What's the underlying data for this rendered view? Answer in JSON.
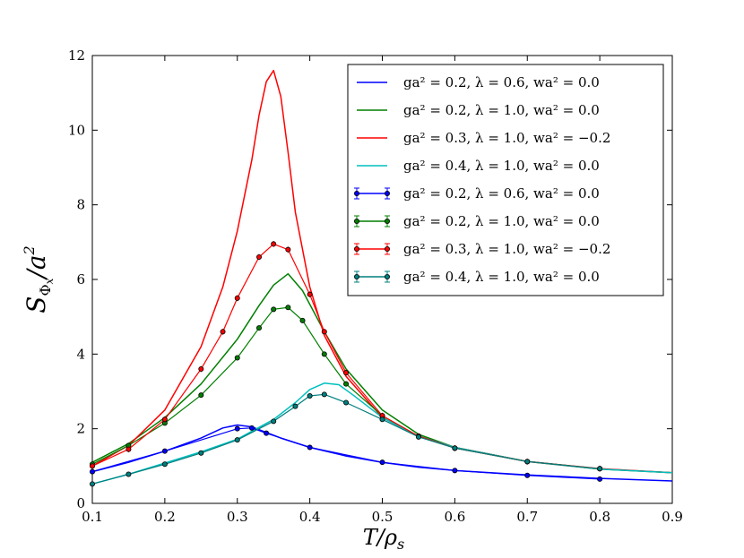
{
  "chart_data": {
    "type": "line",
    "xlabel": "T/ρ_s",
    "ylabel": "S_Φx/a^2",
    "xlim": [
      0.1,
      0.9
    ],
    "ylim": [
      0,
      12
    ],
    "xticks": [
      "0.1",
      "0.2",
      "0.3",
      "0.4",
      "0.5",
      "0.6",
      "0.7",
      "0.8",
      "0.9"
    ],
    "yticks": [
      "0",
      "2",
      "4",
      "6",
      "8",
      "10",
      "12"
    ],
    "legend_position": "top-right",
    "lines": [
      {
        "name": "ga² = 0.2, λ = 0.6, wa² = 0.0",
        "color": "#0000ff",
        "x": [
          0.1,
          0.15,
          0.2,
          0.25,
          0.28,
          0.3,
          0.32,
          0.34,
          0.36,
          0.4,
          0.45,
          0.5,
          0.55,
          0.6,
          0.7,
          0.8,
          0.9
        ],
        "y": [
          0.85,
          1.1,
          1.4,
          1.75,
          2.02,
          2.1,
          2.05,
          1.9,
          1.75,
          1.5,
          1.27,
          1.1,
          0.97,
          0.88,
          0.76,
          0.67,
          0.6
        ]
      },
      {
        "name": "ga² = 0.2, λ = 1.0, wa² = 0.0",
        "color": "#007f00",
        "x": [
          0.1,
          0.15,
          0.2,
          0.25,
          0.3,
          0.33,
          0.35,
          0.37,
          0.39,
          0.42,
          0.45,
          0.5,
          0.55,
          0.6,
          0.7,
          0.8,
          0.9
        ],
        "y": [
          1.1,
          1.6,
          2.3,
          3.2,
          4.4,
          5.3,
          5.85,
          6.15,
          5.7,
          4.6,
          3.6,
          2.5,
          1.85,
          1.5,
          1.12,
          0.92,
          0.82
        ]
      },
      {
        "name": "ga² = 0.3, λ = 1.0, wa² = −0.2",
        "color": "#ff0000",
        "x": [
          0.1,
          0.15,
          0.2,
          0.25,
          0.28,
          0.3,
          0.32,
          0.33,
          0.34,
          0.35,
          0.36,
          0.37,
          0.38,
          0.4,
          0.42,
          0.45,
          0.5,
          0.55,
          0.6,
          0.7,
          0.8,
          0.9
        ],
        "y": [
          1.0,
          1.55,
          2.5,
          4.2,
          5.8,
          7.3,
          9.2,
          10.4,
          11.3,
          11.6,
          10.9,
          9.4,
          7.8,
          5.8,
          4.5,
          3.4,
          2.3,
          1.8,
          1.5,
          1.12,
          0.93,
          0.82
        ]
      },
      {
        "name": "ga² = 0.4, λ = 1.0, wa² = 0.0",
        "color": "#00bfbf",
        "x": [
          0.1,
          0.15,
          0.2,
          0.25,
          0.3,
          0.35,
          0.38,
          0.4,
          0.42,
          0.44,
          0.46,
          0.5,
          0.55,
          0.6,
          0.7,
          0.8,
          0.9
        ],
        "y": [
          0.52,
          0.78,
          1.08,
          1.38,
          1.72,
          2.25,
          2.7,
          3.05,
          3.22,
          3.18,
          2.9,
          2.3,
          1.8,
          1.5,
          1.12,
          0.92,
          0.82
        ]
      }
    ],
    "errorbar_series": [
      {
        "name": "ga² = 0.2, λ = 0.6, wa² = 0.0",
        "color": "#0000ff",
        "err": 0.03,
        "x": [
          0.1,
          0.2,
          0.3,
          0.32,
          0.34,
          0.4,
          0.5,
          0.6,
          0.7,
          0.8
        ],
        "y": [
          0.85,
          1.4,
          2.0,
          2.02,
          1.88,
          1.5,
          1.1,
          0.88,
          0.75,
          0.65
        ]
      },
      {
        "name": "ga² = 0.2, λ = 1.0, wa² = 0.0",
        "color": "#007f00",
        "err": 0.05,
        "x": [
          0.1,
          0.15,
          0.2,
          0.25,
          0.3,
          0.33,
          0.35,
          0.37,
          0.39,
          0.42,
          0.45,
          0.5,
          0.55,
          0.6,
          0.7,
          0.8
        ],
        "y": [
          1.05,
          1.55,
          2.15,
          2.9,
          3.9,
          4.7,
          5.2,
          5.25,
          4.9,
          4.0,
          3.2,
          2.35,
          1.8,
          1.48,
          1.12,
          0.93
        ]
      },
      {
        "name": "ga² = 0.3, λ = 1.0, wa² = −0.2",
        "color": "#ff0000",
        "err": 0.08,
        "x": [
          0.1,
          0.15,
          0.2,
          0.25,
          0.28,
          0.3,
          0.33,
          0.35,
          0.37,
          0.4,
          0.42,
          0.45,
          0.5,
          0.55,
          0.6,
          0.7,
          0.8
        ],
        "y": [
          1.0,
          1.45,
          2.25,
          3.6,
          4.6,
          5.5,
          6.6,
          6.95,
          6.8,
          5.6,
          4.6,
          3.5,
          2.35,
          1.8,
          1.48,
          1.12,
          0.93
        ]
      },
      {
        "name": "ga² = 0.4, λ = 1.0, wa² = 0.0",
        "color": "#007f7f",
        "err": 0.04,
        "x": [
          0.1,
          0.15,
          0.2,
          0.25,
          0.3,
          0.35,
          0.38,
          0.4,
          0.42,
          0.45,
          0.5,
          0.55,
          0.6,
          0.7,
          0.8
        ],
        "y": [
          0.52,
          0.78,
          1.05,
          1.35,
          1.7,
          2.2,
          2.6,
          2.88,
          2.92,
          2.7,
          2.25,
          1.78,
          1.48,
          1.12,
          0.93
        ]
      }
    ]
  }
}
